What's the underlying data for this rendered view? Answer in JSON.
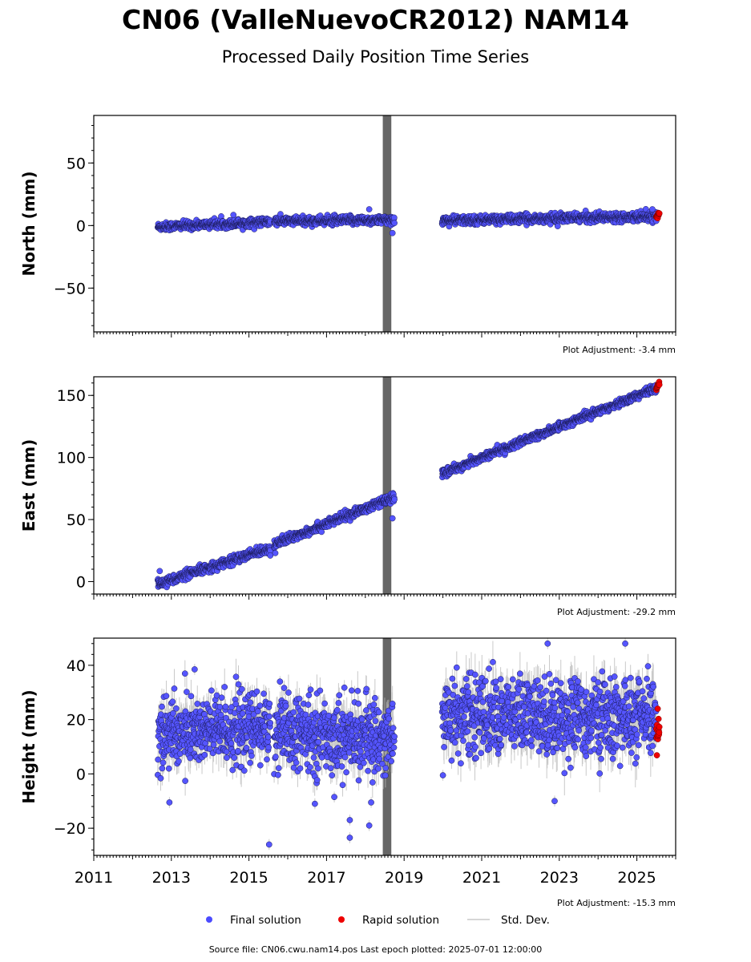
{
  "figure": {
    "title": "CN06 (ValleNuevoCR2012) NAM14",
    "subtitle": "Processed Daily Position Time Series",
    "source_note": "Source file: CN06.cwu.nam14.pos  Last epoch plotted: 2025-07-01 12:00:00"
  },
  "legend": {
    "position": "bottom-center",
    "items": [
      {
        "label": "Final solution",
        "color": "#4b4bff",
        "kind": "dot"
      },
      {
        "label": "Rapid solution",
        "color": "#ee0000",
        "kind": "dot"
      },
      {
        "label": "Std. Dev.",
        "color": "#c8c8c8",
        "kind": "line"
      }
    ]
  },
  "colors": {
    "final": "#5555ff",
    "final_edge": "#1a1a55",
    "rapid": "#ee0000",
    "stddev": "#b8b8b8",
    "equipment_band": "#666666"
  },
  "chart_data": [
    {
      "type": "scatter",
      "ylabel": "North (mm)",
      "adjustment_label": "Plot Adjustment: -3.4 mm",
      "xlim": [
        2011.0,
        2026.0
      ],
      "ylim": [
        -85,
        88
      ],
      "yticks": [
        -50,
        0,
        50
      ],
      "ytick_labels": [
        "−50",
        "0",
        "50"
      ],
      "equipment_band_x": [
        2018.45,
        2018.67
      ],
      "series": [
        {
          "kind": "final",
          "segments": [
            {
              "x0": 2012.65,
              "x1": 2015.55,
              "y0": -1.0,
              "y1": 3.0,
              "noise": 1.6,
              "sigma": 1.2
            },
            {
              "x0": 2015.65,
              "x1": 2018.75,
              "y0": 3.5,
              "y1": 4.5,
              "noise": 1.7,
              "sigma": 1.2
            },
            {
              "x0": 2019.98,
              "x1": 2025.5,
              "y0": 4.0,
              "y1": 7.5,
              "noise": 1.7,
              "sigma": 1.3
            }
          ],
          "outliers": [
            [
              2018.7,
              -6.0
            ],
            [
              2018.1,
              13.0
            ],
            [
              2025.4,
              13.0
            ],
            [
              2014.6,
              8.5
            ]
          ]
        },
        {
          "kind": "rapid",
          "x0": 2025.5,
          "x1": 2025.58,
          "y0": 7.0,
          "y1": 9.0,
          "noise": 0.9
        }
      ]
    },
    {
      "type": "scatter",
      "ylabel": "East (mm)",
      "adjustment_label": "Plot Adjustment: -29.2 mm",
      "xlim": [
        2011.0,
        2026.0
      ],
      "ylim": [
        -10,
        165
      ],
      "yticks": [
        0,
        50,
        100,
        150
      ],
      "ytick_labels": [
        "0",
        "50",
        "100",
        "150"
      ],
      "equipment_band_x": [
        2018.45,
        2018.67
      ],
      "series": [
        {
          "kind": "final",
          "segments": [
            {
              "x0": 2012.65,
              "x1": 2015.55,
              "y0": -2.0,
              "y1": 27.0,
              "noise": 1.8,
              "sigma": 1.5
            },
            {
              "x0": 2015.65,
              "x1": 2018.75,
              "y0": 30.0,
              "y1": 68.0,
              "noise": 1.8,
              "sigma": 1.5
            },
            {
              "x0": 2019.98,
              "x1": 2025.5,
              "y0": 87.0,
              "y1": 156.0,
              "noise": 1.5,
              "sigma": 1.4
            }
          ],
          "outliers": [
            [
              2018.7,
              51.0
            ],
            [
              2012.7,
              8.5
            ],
            [
              2015.55,
              21.0
            ],
            [
              2015.68,
              23.0
            ]
          ]
        },
        {
          "kind": "rapid",
          "x0": 2025.5,
          "x1": 2025.58,
          "y0": 155.5,
          "y1": 160.0,
          "noise": 1.0
        }
      ]
    },
    {
      "type": "scatter",
      "ylabel": "Height (mm)",
      "adjustment_label": "Plot Adjustment: -15.3 mm",
      "xlim": [
        2011.0,
        2026.0
      ],
      "ylim": [
        -30,
        50
      ],
      "yticks": [
        -20,
        0,
        20,
        40
      ],
      "ytick_labels": [
        "−20",
        "0",
        "20",
        "40"
      ],
      "xticks": [
        2011,
        2013,
        2015,
        2017,
        2019,
        2021,
        2023,
        2025
      ],
      "xtick_labels": [
        "2011",
        "2013",
        "2015",
        "2017",
        "2019",
        "2021",
        "2023",
        "2025"
      ],
      "equipment_band_x": [
        2018.45,
        2018.67
      ],
      "series": [
        {
          "kind": "final",
          "segments": [
            {
              "x0": 2012.65,
              "x1": 2015.55,
              "y0": 15.0,
              "y1": 17.0,
              "noise": 6.5,
              "sigma": 5.0
            },
            {
              "x0": 2015.65,
              "x1": 2018.75,
              "y0": 15.0,
              "y1": 13.0,
              "noise": 6.5,
              "sigma": 5.0
            },
            {
              "x0": 2019.98,
              "x1": 2025.5,
              "y0": 22.0,
              "y1": 20.0,
              "noise": 7.0,
              "sigma": 6.0
            }
          ],
          "outliers": [
            [
              2015.52,
              -26.0
            ],
            [
              2017.6,
              -23.5
            ],
            [
              2017.6,
              -17.0
            ],
            [
              2018.1,
              -19.0
            ],
            [
              2022.88,
              -10.0
            ],
            [
              2020.0,
              -0.5
            ],
            [
              2024.7,
              48.0
            ],
            [
              2022.7,
              48.0
            ],
            [
              2013.6,
              38.5
            ],
            [
              2015.8,
              34.0
            ],
            [
              2016.7,
              -11.0
            ],
            [
              2012.95,
              -10.5
            ],
            [
              2017.2,
              -8.5
            ],
            [
              2018.15,
              -10.5
            ]
          ]
        },
        {
          "kind": "rapid",
          "x0": 2025.5,
          "x1": 2025.58,
          "y0": 16.0,
          "y1": 17.0,
          "noise": 4.5
        }
      ]
    }
  ]
}
